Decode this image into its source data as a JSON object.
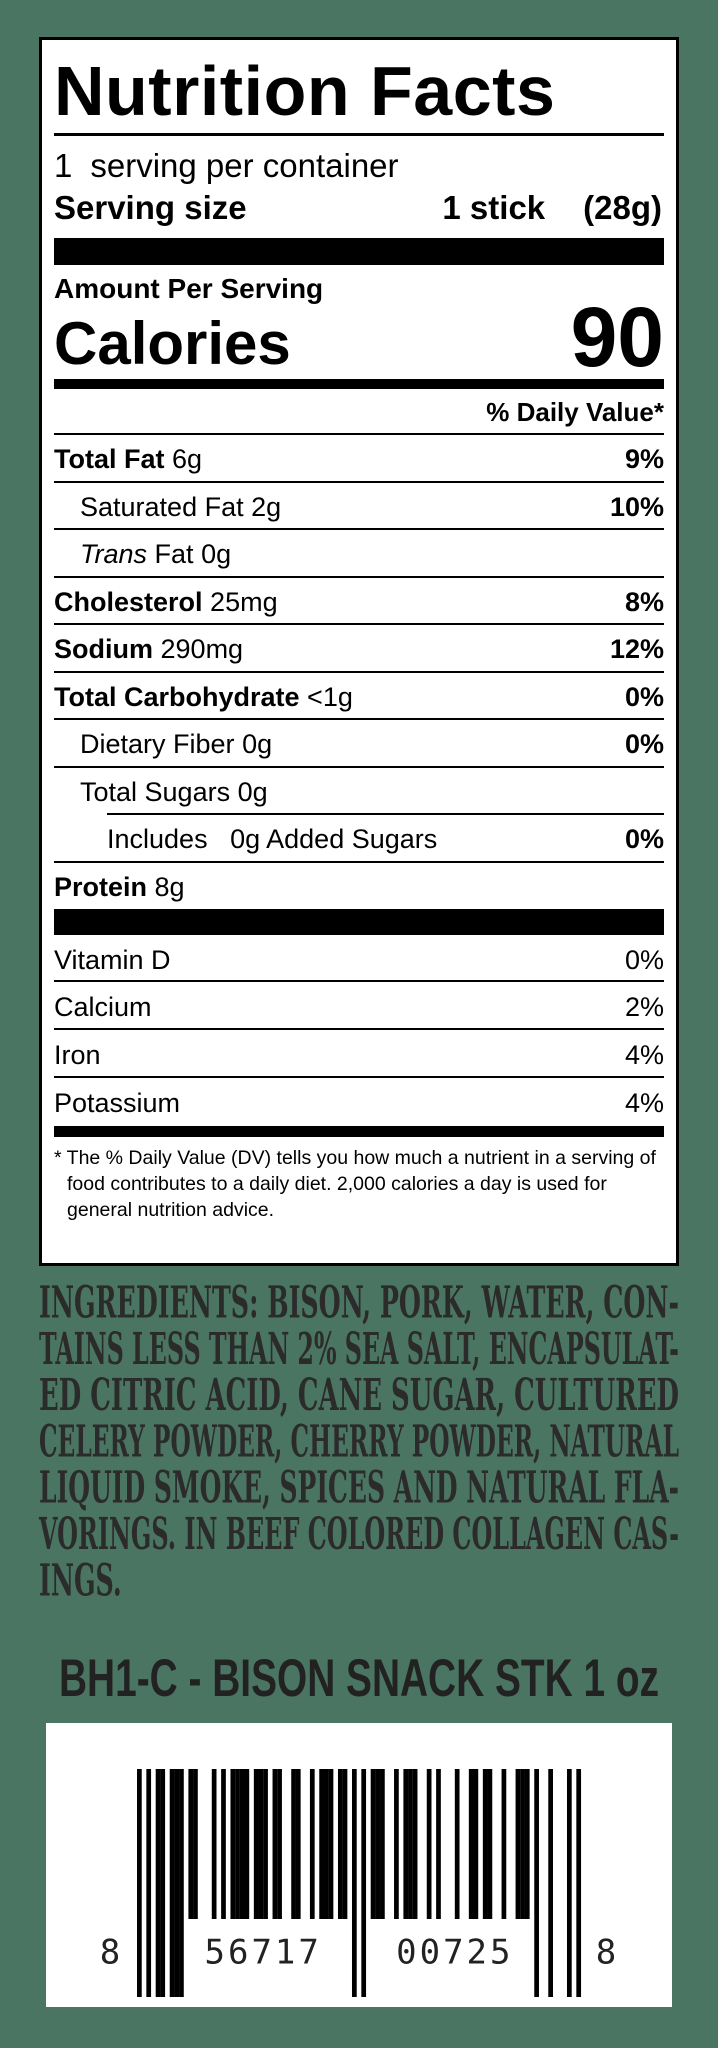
{
  "label": {
    "title": "Nutrition Facts",
    "servings_count": "1",
    "servings_text": "serving per container",
    "serving_size_label": "Serving size",
    "serving_size": "1 stick",
    "serving_weight": "(28g)",
    "amount_per_serving": "Amount Per Serving",
    "calories_label": "Calories",
    "calories": 90,
    "daily_value_header": "% Daily Value*",
    "nutrients": [
      {
        "name": "Total Fat",
        "amount": "6g",
        "dv": "9%",
        "bold": true,
        "indent": 0
      },
      {
        "name": "Saturated Fat",
        "amount": "2g",
        "dv": "10%",
        "bold": false,
        "indent": 1
      },
      {
        "italic": "Trans",
        "name": "Fat",
        "amount": "0g",
        "bold": false,
        "indent": 1
      },
      {
        "name": "Cholesterol",
        "amount": "25mg",
        "dv": "8%",
        "bold": true,
        "indent": 0
      },
      {
        "name": "Sodium",
        "amount": "290mg",
        "dv": "12%",
        "bold": true,
        "indent": 0
      },
      {
        "name": "Total Carbohydrate",
        "amount": "<1g",
        "dv": "0%",
        "bold": true,
        "indent": 0
      },
      {
        "name": "Dietary Fiber",
        "amount": "0g",
        "dv": "0%",
        "bold": false,
        "indent": 1
      },
      {
        "name": "Total Sugars",
        "amount": "0g",
        "bold": false,
        "indent": 1
      },
      {
        "name": "Includes",
        "amount": "0g Added Sugars",
        "dv": "0%",
        "bold": false,
        "indent": 2
      },
      {
        "name": "Protein",
        "amount": "8g",
        "bold": true,
        "indent": 0
      }
    ],
    "vitamins": [
      {
        "name": "Vitamin D",
        "dv": "0%"
      },
      {
        "name": "Calcium",
        "dv": "2%"
      },
      {
        "name": "Iron",
        "dv": "4%"
      },
      {
        "name": "Potassium",
        "dv": "4%"
      }
    ],
    "footnote": "* The % Daily Value (DV) tells you how much a nutrient in a serving of food contributes to a daily diet. 2,000 calories a day is used for general nutrition advice."
  },
  "ingredients": [
    "INGREDIENTS:  BISON, PORK, WATER, CON-",
    "TAINS LESS THAN 2% SEA SALT, ENCAPSULAT-",
    "ED CITRIC ACID, CANE SUGAR, CULTURED",
    "CELERY POWDER, CHERRY POWDER, NATURAL",
    "LIQUID SMOKE, SPICES AND NATURAL FLA-",
    "VORINGS. IN BEEF COLORED COLLAGEN CAS-",
    "INGS."
  ],
  "product_code": "BH1-C - BISON SNACK STK 1 oz",
  "barcode": {
    "lead": "8",
    "left": "56717",
    "right": "00725",
    "check": "8"
  }
}
